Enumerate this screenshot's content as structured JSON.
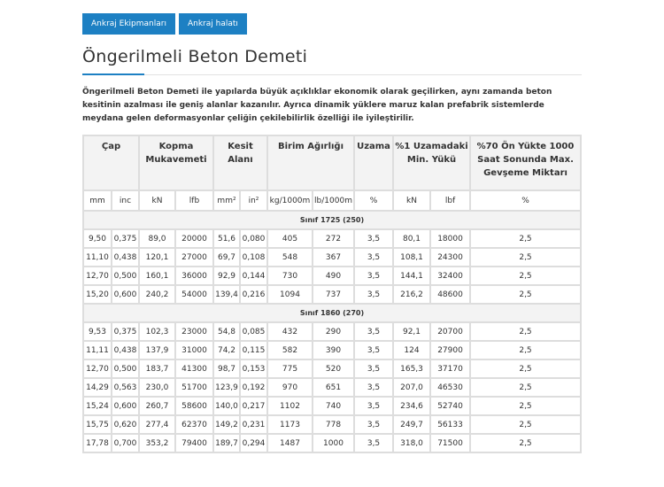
{
  "buttons": [
    "Ankraj Ekipmanları",
    "Ankraj halatı"
  ],
  "header": {
    "title": "Öngerilmeli Beton Demeti"
  },
  "intro": "Öngerilmeli Beton Demeti ile yapılarda büyük açıklıklar ekonomik olarak geçilirken, aynı zamanda beton kesitinin azalması ile geniş alanlar kazanılır. Ayrıca dinamik yüklere maruz kalan prefabrik sistemlerde meydana gelen deformasyonlar çeliğin çekilebilirlik özelliği ile iyileştirilir.",
  "table": {
    "headers": [
      "Çap",
      "Kopma Mukavemeti",
      "Kesit Alanı",
      "Birim Ağırlığı",
      "Uzama",
      "%1 Uzamadaki Min. Yükü",
      "%70 Ön Yükte 1000 Saat Sonunda Max. Gevşeme Miktarı"
    ],
    "units": [
      "mm",
      "inc",
      "kN",
      "lfb",
      "mm²",
      "in²",
      "kg/1000m",
      "lb/1000m",
      "%",
      "kN",
      "lbf",
      "%"
    ],
    "sections": [
      {
        "title": "Sınıf 1725 (250)",
        "rows": [
          [
            "9,50",
            "0,375",
            "89,0",
            "20000",
            "51,6",
            "0,080",
            "405",
            "272",
            "3,5",
            "80,1",
            "18000",
            "2,5"
          ],
          [
            "11,10",
            "0,438",
            "120,1",
            "27000",
            "69,7",
            "0,108",
            "548",
            "367",
            "3,5",
            "108,1",
            "24300",
            "2,5"
          ],
          [
            "12,70",
            "0,500",
            "160,1",
            "36000",
            "92,9",
            "0,144",
            "730",
            "490",
            "3,5",
            "144,1",
            "32400",
            "2,5"
          ],
          [
            "15,20",
            "0,600",
            "240,2",
            "54000",
            "139,4",
            "0,216",
            "1094",
            "737",
            "3,5",
            "216,2",
            "48600",
            "2,5"
          ]
        ]
      },
      {
        "title": "Sınıf 1860 (270)",
        "rows": [
          [
            "9,53",
            "0,375",
            "102,3",
            "23000",
            "54,8",
            "0,085",
            "432",
            "290",
            "3,5",
            "92,1",
            "20700",
            "2,5"
          ],
          [
            "11,11",
            "0,438",
            "137,9",
            "31000",
            "74,2",
            "0,115",
            "582",
            "390",
            "3,5",
            "124",
            "27900",
            "2,5"
          ],
          [
            "12,70",
            "0,500",
            "183,7",
            "41300",
            "98,7",
            "0,153",
            "775",
            "520",
            "3,5",
            "165,3",
            "37170",
            "2,5"
          ],
          [
            "14,29",
            "0,563",
            "230,0",
            "51700",
            "123,9",
            "0,192",
            "970",
            "651",
            "3,5",
            "207,0",
            "46530",
            "2,5"
          ],
          [
            "15,24",
            "0,600",
            "260,7",
            "58600",
            "140,0",
            "0,217",
            "1102",
            "740",
            "3,5",
            "234,6",
            "52740",
            "2,5"
          ],
          [
            "15,75",
            "0,620",
            "277,4",
            "62370",
            "149,2",
            "0,231",
            "1173",
            "778",
            "3,5",
            "249,7",
            "56133",
            "2,5"
          ],
          [
            "17,78",
            "0,700",
            "353,2",
            "79400",
            "189,7",
            "0,294",
            "1487",
            "1000",
            "3,5",
            "318,0",
            "71500",
            "2,5"
          ]
        ]
      }
    ]
  }
}
